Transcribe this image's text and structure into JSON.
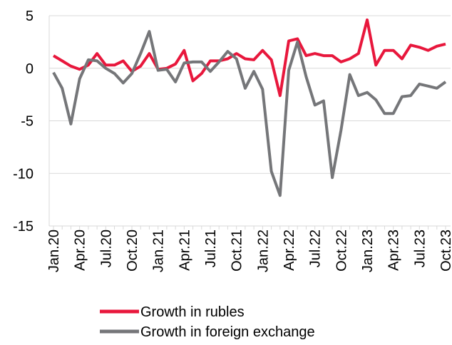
{
  "chart_data": {
    "type": "line",
    "categories": [
      "Jan.20",
      null,
      null,
      "Apr.20",
      null,
      null,
      "Jul.20",
      null,
      null,
      "Oct.20",
      null,
      null,
      "Jan.21",
      null,
      null,
      "Apr.21",
      null,
      null,
      "Jul.21",
      null,
      null,
      "Oct.21",
      null,
      null,
      "Jan.22",
      null,
      null,
      "Apr.22",
      null,
      null,
      "Jul.22",
      null,
      null,
      "Oct.22",
      null,
      null,
      "Jan.23",
      null,
      null,
      "Apr.23",
      null,
      null,
      "Jul.23",
      null,
      null,
      "Oct.23"
    ],
    "series": [
      {
        "name": "Growth in rubles",
        "color": "#e8173c",
        "values": [
          1.2,
          0.7,
          0.2,
          -0.1,
          0.3,
          1.4,
          0.3,
          0.3,
          0.7,
          -0.3,
          0.2,
          1.4,
          -0.1,
          0.0,
          0.4,
          1.7,
          -1.2,
          -0.5,
          0.7,
          0.7,
          0.9,
          1.4,
          0.9,
          0.8,
          1.7,
          0.8,
          -2.6,
          2.6,
          2.8,
          1.2,
          1.4,
          1.2,
          1.2,
          0.6,
          0.9,
          1.4,
          4.6,
          0.3,
          1.7,
          1.7,
          0.9,
          2.2,
          2.0,
          1.7,
          2.1,
          2.3
        ]
      },
      {
        "name": "Growth in foreign exchange",
        "color": "#757679",
        "values": [
          -0.4,
          -1.9,
          -5.3,
          -1.0,
          0.8,
          0.7,
          0.0,
          -0.5,
          -1.4,
          -0.5,
          1.4,
          3.5,
          -0.2,
          -0.1,
          -1.3,
          0.5,
          0.6,
          0.6,
          -0.3,
          0.6,
          1.6,
          0.9,
          -1.9,
          -0.3,
          -2.0,
          -9.8,
          -12.1,
          -0.2,
          2.5,
          -0.8,
          -3.5,
          -3.1,
          -10.4,
          -5.9,
          -0.6,
          -2.6,
          -2.3,
          -3.0,
          -4.3,
          -4.3,
          -2.7,
          -2.6,
          -1.5,
          -1.7,
          -1.9,
          -1.3
        ]
      }
    ],
    "ylim": [
      -15,
      5
    ],
    "yticks": [
      -15,
      -10,
      -5,
      0,
      5
    ],
    "grid": true
  }
}
